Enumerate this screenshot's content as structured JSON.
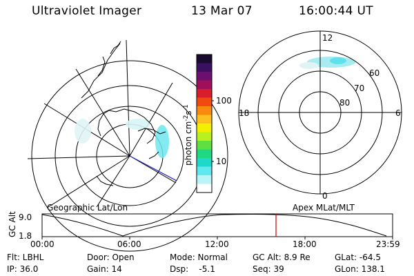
{
  "header": {
    "instrument": "Ultraviolet Imager",
    "date": "13 Mar 07",
    "time": "16:00:44 UT"
  },
  "colorbar": {
    "label": "photon cm",
    "label_sup1": "-2",
    "label_mid": "s",
    "label_sup2": "-1",
    "ticks": [
      "100",
      "10"
    ],
    "colors": [
      "#1a0a2e",
      "#3a1060",
      "#6b1070",
      "#a0105a",
      "#d81e2a",
      "#f04a10",
      "#f88a10",
      "#fcc020",
      "#f0f000",
      "#b8f020",
      "#60e040",
      "#20d880",
      "#20d8c8",
      "#60e8f0",
      "#b8f4f8",
      "#ffffff"
    ]
  },
  "polar_plot": {
    "labels": {
      "top": "12",
      "bottom": "0",
      "left": "18",
      "right": "6"
    },
    "ring_labels": [
      "60",
      "70",
      "80"
    ]
  },
  "altitude_plot": {
    "ylabel": "GC Alt",
    "yticks": [
      "9.0",
      "1.8"
    ],
    "left_title": "Geographic Lat/Lon",
    "right_title": "Apex MLat/MLT",
    "xticks": [
      "00:00",
      "06:00",
      "12:00",
      "18:00",
      "23:59"
    ]
  },
  "info": {
    "flt": "Flt: LBHL",
    "ip": "IP: 36.0",
    "door": "Door: Open",
    "gain": "Gain: 14",
    "mode": "Mode: Normal",
    "dsp": "Dsp:    -5.1",
    "gcalt": "GC Alt: 8.9 Re",
    "seq": "Seq: 39",
    "glat": "GLat: -64.5",
    "glon": "GLon: 138.1"
  }
}
